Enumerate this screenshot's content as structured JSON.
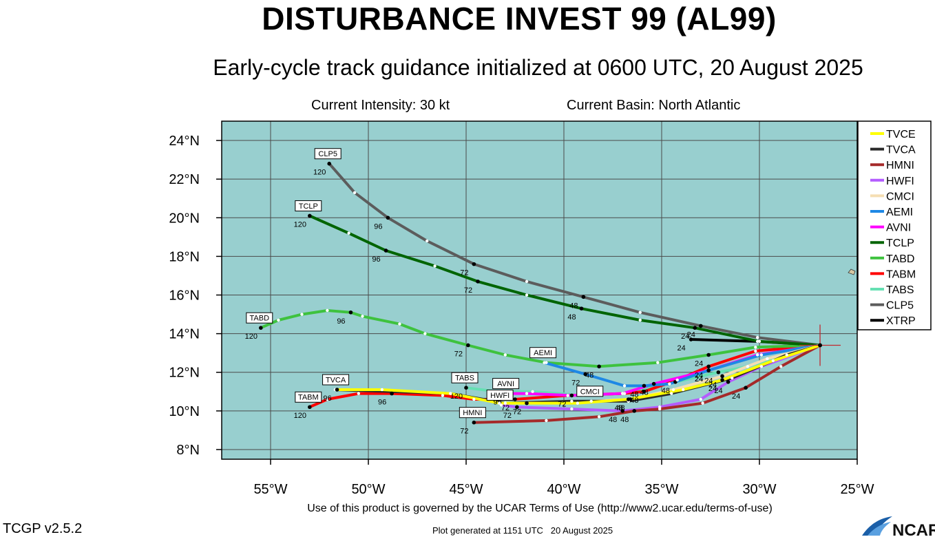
{
  "header": {
    "title": "DISTURBANCE INVEST 99 (AL99)",
    "subtitle": "Early-cycle track guidance initialized at 0600 UTC, 20 August 2025",
    "intensity": "Current Intensity: 30 kt",
    "basin": "Current Basin: North Atlantic"
  },
  "footer": {
    "terms": "Use of this product is governed by the UCAR Terms of Use (http://www2.ucar.edu/terms-of-use)",
    "version": "TCGP v2.5.2",
    "generated": "Plot generated at 1151 UTC   20 August 2025",
    "logo_text": "NCAR"
  },
  "colors": {
    "ocean": "#98cfcf",
    "grid": "#4a4a4a",
    "land": "#d8c9a3"
  },
  "chart_data": {
    "type": "line",
    "xlim": [
      -57.5,
      -25
    ],
    "ylim": [
      7.5,
      25
    ],
    "x_ticks": [
      -55,
      -50,
      -45,
      -40,
      -35,
      -30,
      -25
    ],
    "x_tick_labels": [
      "55°W",
      "50°W",
      "45°W",
      "40°W",
      "35°W",
      "30°W",
      "25°W"
    ],
    "y_ticks": [
      8,
      10,
      12,
      14,
      16,
      18,
      20,
      22,
      24
    ],
    "y_tick_labels": [
      "8°N",
      "10°N",
      "12°N",
      "14°N",
      "16°N",
      "18°N",
      "20°N",
      "22°N",
      "24°N"
    ],
    "grid": true,
    "legend_position": "right",
    "initial_position": {
      "lon": -26.9,
      "lat": 13.4
    },
    "series": [
      {
        "name": "TVCE",
        "color": "#ffff00",
        "points": [
          [
            -26.9,
            13.4
          ],
          [
            -29.3,
            12.6
          ],
          [
            -31.9,
            11.6
          ],
          [
            -33.9,
            11.1
          ],
          [
            -36.7,
            10.6
          ],
          [
            -39.3,
            10.4
          ],
          [
            -41.9,
            10.4
          ],
          [
            -43.3,
            10.4
          ],
          [
            -45.8,
            10.9
          ],
          [
            -49.3,
            11.1
          ],
          [
            -51.6,
            11.1
          ]
        ],
        "hours": [
          [
            -31.9,
            11.6,
            "24"
          ],
          [
            -36.7,
            10.6,
            "48"
          ],
          [
            -41.9,
            10.4,
            "72"
          ],
          [
            -51.6,
            11.1,
            "96"
          ]
        ],
        "end_label": "TVCA"
      },
      {
        "name": "TVCA",
        "color": "#2a2a2a",
        "points": [
          [
            -26.9,
            13.4
          ],
          [
            -28.6,
            12.9
          ],
          [
            -31.4,
            11.7
          ],
          [
            -34.5,
            10.9
          ],
          [
            -36.7,
            10.5
          ],
          [
            -39.6,
            10.5
          ],
          [
            -43.0,
            10.4
          ],
          [
            -45.8,
            10.9
          ],
          [
            -51.7,
            11.1
          ]
        ],
        "hours": [],
        "end_label": ""
      },
      {
        "name": "HMNI",
        "color": "#a52a2a",
        "points": [
          [
            -26.9,
            13.4
          ],
          [
            -28.9,
            12.3
          ],
          [
            -30.7,
            11.2
          ],
          [
            -32.9,
            10.4
          ],
          [
            -35.1,
            10.1
          ],
          [
            -36.4,
            10.0
          ],
          [
            -38.2,
            9.7
          ],
          [
            -40.9,
            9.5
          ],
          [
            -44.6,
            9.4
          ]
        ],
        "hours": [
          [
            -30.7,
            11.2,
            "24"
          ],
          [
            -36.4,
            10.0,
            "48"
          ],
          [
            -44.6,
            9.4,
            "72"
          ]
        ],
        "end_label": "HMNI"
      },
      {
        "name": "HWFI",
        "color": "#b45cff",
        "points": [
          [
            -26.9,
            13.4
          ],
          [
            -29.9,
            12.3
          ],
          [
            -31.6,
            11.5
          ],
          [
            -33.0,
            10.6
          ],
          [
            -35.1,
            10.2
          ],
          [
            -37.0,
            10.0
          ],
          [
            -39.6,
            10.1
          ],
          [
            -42.4,
            10.2
          ],
          [
            -43.2,
            10.3
          ]
        ],
        "hours": [
          [
            -31.6,
            11.5,
            "24"
          ],
          [
            -37.0,
            10.0,
            "48"
          ],
          [
            -42.4,
            10.2,
            "72"
          ]
        ],
        "end_label": "HWFI"
      },
      {
        "name": "CMCI",
        "color": "#f5deb3",
        "points": [
          [
            -26.9,
            13.4
          ],
          [
            -29.6,
            12.7
          ],
          [
            -31.9,
            11.8
          ],
          [
            -34.4,
            11.1
          ],
          [
            -36.6,
            10.6
          ],
          [
            -38.6,
            10.5
          ]
        ],
        "hours": [
          [
            -31.9,
            11.8,
            "24"
          ],
          [
            -36.6,
            10.6,
            "48"
          ]
        ],
        "end_label": "CMCI"
      },
      {
        "name": "AEMI",
        "color": "#1e88e5",
        "points": [
          [
            -26.9,
            13.4
          ],
          [
            -29.9,
            12.9
          ],
          [
            -32.6,
            12.1
          ],
          [
            -34.6,
            11.4
          ],
          [
            -35.9,
            11.3
          ],
          [
            -36.9,
            11.3
          ],
          [
            -38.9,
            11.9
          ],
          [
            -41.0,
            12.5
          ]
        ],
        "hours": [
          [
            -32.6,
            12.1,
            "24"
          ],
          [
            -35.9,
            11.3,
            "48"
          ],
          [
            -38.9,
            11.9,
            "72"
          ]
        ],
        "end_label": "AEMI"
      },
      {
        "name": "AVNI",
        "color": "#ff00ff",
        "points": [
          [
            -26.9,
            13.4
          ],
          [
            -30.1,
            12.9
          ],
          [
            -32.6,
            12.1
          ],
          [
            -35.4,
            11.4
          ],
          [
            -37.0,
            10.9
          ],
          [
            -39.6,
            10.8
          ],
          [
            -41.9,
            10.9
          ],
          [
            -42.9,
            10.9
          ]
        ],
        "hours": [
          [
            -32.6,
            12.1,
            "24"
          ],
          [
            -35.4,
            11.4,
            "48"
          ],
          [
            -39.6,
            10.8,
            "72"
          ],
          [
            -42.9,
            10.9,
            "96"
          ]
        ],
        "end_label": "AVNI"
      },
      {
        "name": "TCLP",
        "color": "#006400",
        "points": [
          [
            -26.9,
            13.4
          ],
          [
            -30.0,
            13.6
          ],
          [
            -33.3,
            14.3
          ],
          [
            -36.1,
            14.7
          ],
          [
            -39.1,
            15.3
          ],
          [
            -41.9,
            16.0
          ],
          [
            -44.4,
            16.7
          ],
          [
            -46.6,
            17.5
          ],
          [
            -49.1,
            18.3
          ],
          [
            -51.0,
            19.2
          ],
          [
            -53.0,
            20.1
          ]
        ],
        "hours": [
          [
            -33.3,
            14.3,
            "24"
          ],
          [
            -39.1,
            15.3,
            "48"
          ],
          [
            -44.4,
            16.7,
            "72"
          ],
          [
            -49.1,
            18.3,
            "96"
          ],
          [
            -53.0,
            20.1,
            "120"
          ]
        ],
        "end_label": "TCLP"
      },
      {
        "name": "TABD",
        "color": "#3ec23e",
        "points": [
          [
            -26.9,
            13.4
          ],
          [
            -30.2,
            13.3
          ],
          [
            -32.6,
            12.9
          ],
          [
            -35.2,
            12.5
          ],
          [
            -38.2,
            12.3
          ],
          [
            -40.9,
            12.5
          ],
          [
            -43.0,
            12.9
          ],
          [
            -44.9,
            13.4
          ],
          [
            -47.1,
            14.0
          ],
          [
            -48.4,
            14.5
          ],
          [
            -50.3,
            14.9
          ],
          [
            -50.9,
            15.1
          ],
          [
            -52.1,
            15.2
          ],
          [
            -53.4,
            15.0
          ],
          [
            -54.6,
            14.7
          ],
          [
            -55.5,
            14.3
          ]
        ],
        "hours": [
          [
            -32.6,
            12.9,
            "24"
          ],
          [
            -38.2,
            12.3,
            "48"
          ],
          [
            -44.9,
            13.4,
            "72"
          ],
          [
            -50.9,
            15.1,
            "96"
          ],
          [
            -55.5,
            14.3,
            "120"
          ]
        ],
        "end_label": "TABD"
      },
      {
        "name": "TABM",
        "color": "#ff0000",
        "points": [
          [
            -26.9,
            13.4
          ],
          [
            -30.2,
            13.1
          ],
          [
            -32.6,
            12.3
          ],
          [
            -34.2,
            11.6
          ],
          [
            -35.9,
            11.0
          ],
          [
            -37.0,
            10.9
          ],
          [
            -39.8,
            10.8
          ],
          [
            -42.5,
            10.6
          ],
          [
            -44.6,
            10.6
          ],
          [
            -46.2,
            10.8
          ],
          [
            -48.8,
            10.9
          ],
          [
            -50.5,
            10.9
          ],
          [
            -52.1,
            10.6
          ],
          [
            -53.0,
            10.2
          ]
        ],
        "hours": [
          [
            -32.6,
            12.3,
            "24"
          ],
          [
            -35.9,
            11.0,
            "48"
          ],
          [
            -42.5,
            10.6,
            "72"
          ],
          [
            -48.8,
            10.9,
            "96"
          ],
          [
            -53.0,
            10.2,
            "120"
          ]
        ],
        "end_label": "TABM"
      },
      {
        "name": "TABS",
        "color": "#66e0b3",
        "points": [
          [
            -26.9,
            13.4
          ],
          [
            -30.6,
            12.3
          ],
          [
            -32.1,
            12.0
          ],
          [
            -34.3,
            11.5
          ],
          [
            -36.9,
            10.9
          ],
          [
            -39.0,
            10.8
          ],
          [
            -41.6,
            11.0
          ],
          [
            -43.4,
            11.0
          ],
          [
            -45.0,
            11.2
          ]
        ],
        "hours": [
          [
            -32.1,
            12.0,
            "24"
          ],
          [
            -34.3,
            11.5,
            "48"
          ],
          [
            -45.0,
            11.2,
            "120"
          ]
        ],
        "end_label": "TABS"
      },
      {
        "name": "CLP5",
        "color": "#5c5c5c",
        "points": [
          [
            -26.9,
            13.4
          ],
          [
            -30.1,
            13.8
          ],
          [
            -33.0,
            14.4
          ],
          [
            -36.1,
            15.1
          ],
          [
            -39.0,
            15.9
          ],
          [
            -41.9,
            16.7
          ],
          [
            -44.6,
            17.6
          ],
          [
            -47.0,
            18.8
          ],
          [
            -49.0,
            20.0
          ],
          [
            -50.7,
            21.3
          ],
          [
            -52.0,
            22.8
          ]
        ],
        "hours": [
          [
            -33.0,
            14.4,
            "24"
          ],
          [
            -39.0,
            15.9,
            "48"
          ],
          [
            -44.6,
            17.6,
            "72"
          ],
          [
            -49.0,
            20.0,
            "96"
          ],
          [
            -52.0,
            22.8,
            "120"
          ]
        ],
        "end_label": "CLP5"
      },
      {
        "name": "XTRP",
        "color": "#000000",
        "points": [
          [
            -26.9,
            13.4
          ],
          [
            -30.1,
            13.6
          ],
          [
            -33.5,
            13.7
          ]
        ],
        "hours": [
          [
            -33.5,
            13.7,
            "24"
          ]
        ],
        "end_label": ""
      }
    ]
  }
}
